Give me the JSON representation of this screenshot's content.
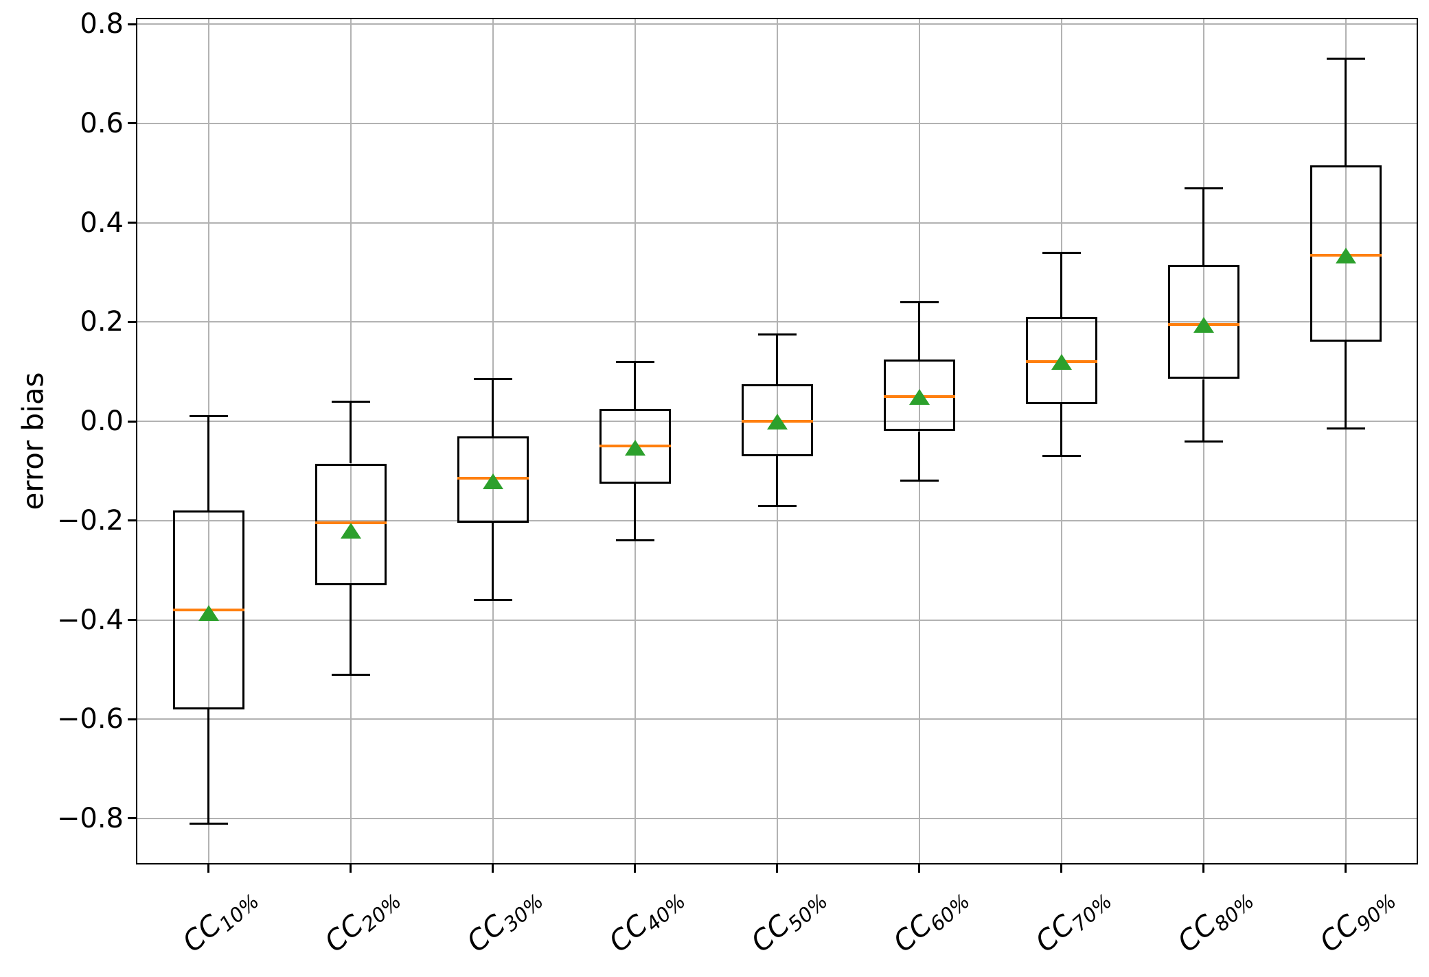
{
  "chart_data": {
    "type": "box",
    "title": "",
    "xlabel": "",
    "ylabel": "error bias",
    "ylim": [
      -0.89,
      0.81
    ],
    "grid": true,
    "legend": "none",
    "yticks": [
      {
        "label": "0.8",
        "value": 0.8
      },
      {
        "label": "0.6",
        "value": 0.6
      },
      {
        "label": "0.4",
        "value": 0.4
      },
      {
        "label": "0.2",
        "value": 0.2
      },
      {
        "label": "0.0",
        "value": 0.0
      },
      {
        "label": "−0.2",
        "value": -0.2
      },
      {
        "label": "−0.4",
        "value": -0.4
      },
      {
        "label": "−0.6",
        "value": -0.6
      },
      {
        "label": "−0.8",
        "value": -0.8
      }
    ],
    "boxes": [
      {
        "label_main": "CC",
        "label_sub": "10%",
        "whisker_low": -0.81,
        "q1": -0.58,
        "median": -0.38,
        "mean": -0.385,
        "q3": -0.18,
        "whisker_high": 0.01
      },
      {
        "label_main": "CC",
        "label_sub": "20%",
        "whisker_low": -0.51,
        "q1": -0.33,
        "median": -0.205,
        "mean": -0.22,
        "q3": -0.085,
        "whisker_high": 0.04
      },
      {
        "label_main": "CC",
        "label_sub": "30%",
        "whisker_low": -0.36,
        "q1": -0.205,
        "median": -0.115,
        "mean": -0.12,
        "q3": -0.03,
        "whisker_high": 0.085
      },
      {
        "label_main": "CC",
        "label_sub": "40%",
        "whisker_low": -0.24,
        "q1": -0.125,
        "median": -0.05,
        "mean": -0.052,
        "q3": 0.025,
        "whisker_high": 0.12
      },
      {
        "label_main": "CC",
        "label_sub": "50%",
        "whisker_low": -0.17,
        "q1": -0.07,
        "median": 0.0,
        "mean": 0.0,
        "q3": 0.075,
        "whisker_high": 0.175
      },
      {
        "label_main": "CC",
        "label_sub": "60%",
        "whisker_low": -0.12,
        "q1": -0.02,
        "median": 0.05,
        "mean": 0.05,
        "q3": 0.125,
        "whisker_high": 0.24
      },
      {
        "label_main": "CC",
        "label_sub": "70%",
        "whisker_low": -0.07,
        "q1": 0.035,
        "median": 0.12,
        "mean": 0.12,
        "q3": 0.21,
        "whisker_high": 0.34
      },
      {
        "label_main": "CC",
        "label_sub": "80%",
        "whisker_low": -0.04,
        "q1": 0.085,
        "median": 0.195,
        "mean": 0.195,
        "q3": 0.315,
        "whisker_high": 0.47
      },
      {
        "label_main": "CC",
        "label_sub": "90%",
        "whisker_low": -0.015,
        "q1": 0.16,
        "median": 0.335,
        "mean": 0.335,
        "q3": 0.515,
        "whisker_high": 0.73
      }
    ],
    "colors": {
      "box_line": "#000000",
      "median_line": "#ff7f0e",
      "mean_marker": "#2ca02c",
      "grid": "#b2b2b2",
      "spine": "#000000",
      "background": "#ffffff"
    }
  }
}
